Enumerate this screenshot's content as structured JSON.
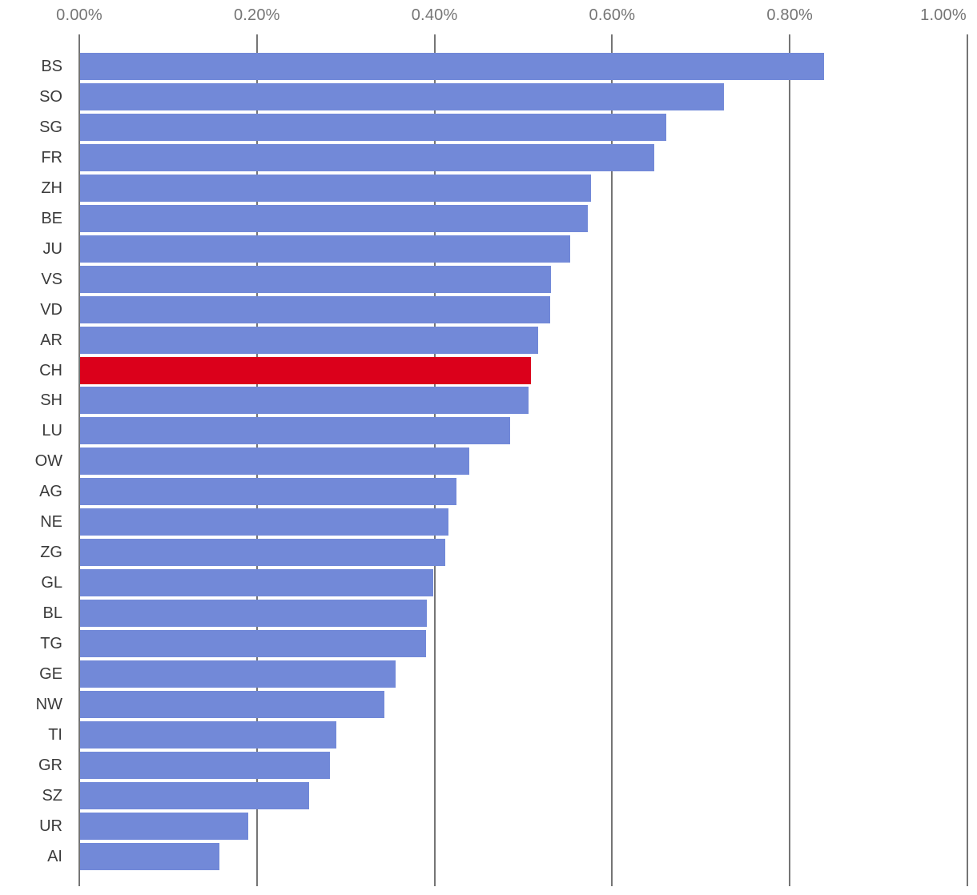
{
  "colors": {
    "bar": "#7289D8",
    "highlight": "#DB001B",
    "grid": "#757575",
    "axis_text": "#757575",
    "category_text": "#3B3B3B",
    "background": "#FFFFFF"
  },
  "chart_data": {
    "type": "bar",
    "orientation": "horizontal",
    "title": "",
    "categories": [
      "BS",
      "SO",
      "SG",
      "FR",
      "ZH",
      "BE",
      "JU",
      "VS",
      "VD",
      "AR",
      "CH",
      "SH",
      "LU",
      "OW",
      "AG",
      "NE",
      "ZG",
      "GL",
      "BL",
      "TG",
      "GE",
      "NW",
      "TI",
      "GR",
      "SZ",
      "UR",
      "AI"
    ],
    "values": [
      0.839,
      0.726,
      0.661,
      0.647,
      0.576,
      0.573,
      0.553,
      0.531,
      0.53,
      0.517,
      0.509,
      0.506,
      0.485,
      0.439,
      0.425,
      0.416,
      0.412,
      0.399,
      0.391,
      0.39,
      0.356,
      0.344,
      0.289,
      0.282,
      0.259,
      0.19,
      0.158
    ],
    "value_unit": "%",
    "highlighted_category": "CH",
    "x_axis": {
      "position": "top",
      "min": 0,
      "max": 1.0,
      "tick_values": [
        0,
        0.2,
        0.4,
        0.6,
        0.8,
        1.0
      ],
      "tick_labels": [
        "0.00%",
        "0.20%",
        "0.40%",
        "0.60%",
        "0.80%",
        "1.00%"
      ]
    },
    "grid": "vertical-only",
    "legend": "none"
  }
}
